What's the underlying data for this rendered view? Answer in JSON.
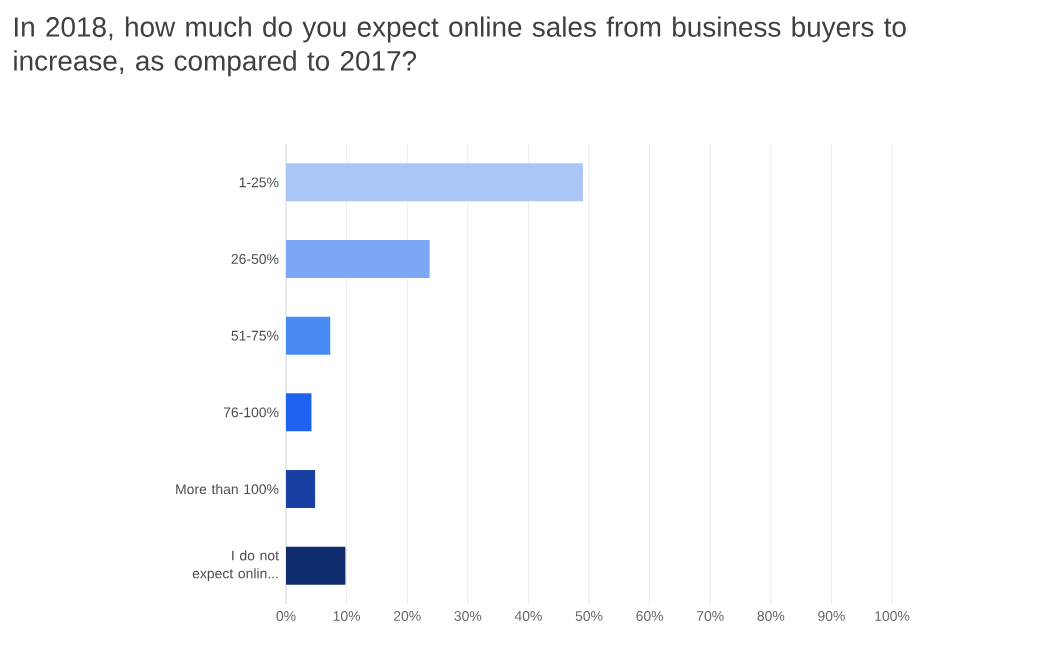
{
  "chart_data": {
    "type": "bar",
    "orientation": "horizontal",
    "title": "In 2018, how much do you expect online sales from business buyers to increase, as compared to 2017?",
    "categories": [
      "1-25%",
      "26-50%",
      "51-75%",
      "76-100%",
      "More than 100%",
      "I do not expect onlin..."
    ],
    "values": [
      49,
      23.7,
      7.3,
      4.2,
      4.8,
      9.8
    ],
    "colors": [
      "#aac6f7",
      "#7ba7f6",
      "#4a8bf3",
      "#1f63f0",
      "#1a40a3",
      "#0f2d6e"
    ],
    "xlim": [
      0,
      100
    ],
    "xticks": [
      {
        "value": 0,
        "label": "0%"
      },
      {
        "value": 10,
        "label": "10%"
      },
      {
        "value": 20,
        "label": "20%"
      },
      {
        "value": 30,
        "label": "30%"
      },
      {
        "value": 40,
        "label": "40%"
      },
      {
        "value": 50,
        "label": "50%"
      },
      {
        "value": 60,
        "label": "60%"
      },
      {
        "value": 70,
        "label": "70%"
      },
      {
        "value": 80,
        "label": "80%"
      },
      {
        "value": 90,
        "label": "90%"
      },
      {
        "value": 100,
        "label": "100%"
      }
    ],
    "grid": "x"
  }
}
